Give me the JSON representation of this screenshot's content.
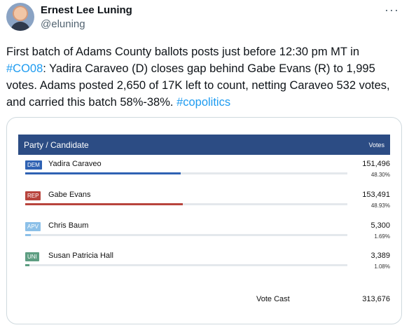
{
  "colors": {
    "dem": "#2f62b3",
    "rep": "#b8443d",
    "apv": "#8cc0e8",
    "uni": "#5e9e82",
    "header_bg": "#2c4c84",
    "hashtag": "#1d9bf0"
  },
  "tweet": {
    "display_name": "Ernest Lee Luning",
    "handle": "@eluning",
    "more_icon": "···",
    "text": {
      "part1": "First batch of Adams County ballots posts just before 12:30 pm MT in ",
      "hashtag1": "#CO08",
      "part2": ": Yadira Caraveo (D) closes gap behind Gabe Evans (R) to 1,995 votes. Adams posted 2,650 of 17K left to count, netting Caraveo 532 votes, and carried this batch 58%-38%. ",
      "hashtag2": "#copolitics"
    }
  },
  "results": {
    "header": {
      "party_candidate": "Party / Candidate",
      "votes": "Votes"
    },
    "candidates": [
      {
        "party": "DEM",
        "name": "Yadira Caraveo",
        "votes": "151,496",
        "percent": "48.30%",
        "share": 0.483,
        "color_key": "dem"
      },
      {
        "party": "REP",
        "name": "Gabe Evans",
        "votes": "153,491",
        "percent": "48.93%",
        "share": 0.4893,
        "color_key": "rep"
      },
      {
        "party": "APV",
        "name": "Chris Baum",
        "votes": "5,300",
        "percent": "1.69%",
        "share": 0.0169,
        "color_key": "apv"
      },
      {
        "party": "UNI",
        "name": "Susan Patricia Hall",
        "votes": "3,389",
        "percent": "1.08%",
        "share": 0.0108,
        "color_key": "uni"
      }
    ],
    "total_label": "Vote Cast",
    "total_value": "313,676"
  }
}
